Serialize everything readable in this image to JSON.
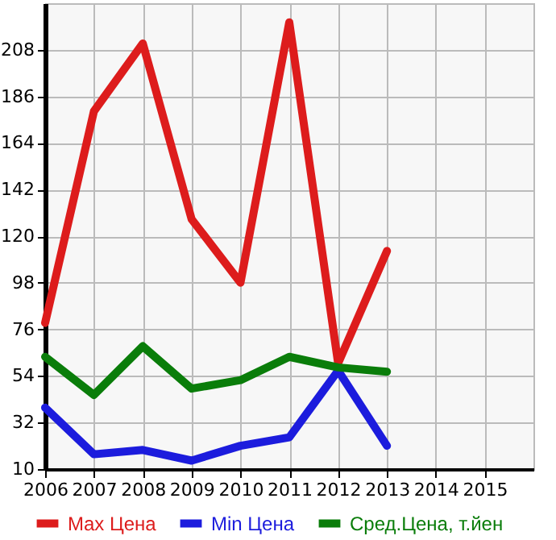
{
  "chart_data": {
    "type": "line",
    "x": [
      2006,
      2007,
      2008,
      2009,
      2010,
      2011,
      2012,
      2013
    ],
    "series": [
      {
        "name": "Max Цена",
        "color": "#dd1c1c",
        "values": [
          79,
          179,
          211,
          128,
          98,
          221,
          60,
          113
        ]
      },
      {
        "name": "Min Цена",
        "color": "#1c1cdd",
        "values": [
          39,
          17,
          19,
          14,
          21,
          25,
          56.5,
          21
        ]
      },
      {
        "name": "Сред.Цена, т.йен",
        "color": "#0a7d0a",
        "values": [
          63,
          45,
          68,
          48,
          52,
          63,
          58,
          56
        ]
      }
    ],
    "xlim": [
      2006,
      2016
    ],
    "xticks": [
      2006,
      2007,
      2008,
      2009,
      2010,
      2011,
      2012,
      2013,
      2014,
      2015
    ],
    "ylim": [
      10,
      230
    ],
    "yticks": [
      10,
      32,
      54,
      76,
      98,
      120,
      142,
      164,
      186,
      208
    ],
    "grid": true,
    "legend": "bottom",
    "marker": "none",
    "line_style": "solid"
  }
}
